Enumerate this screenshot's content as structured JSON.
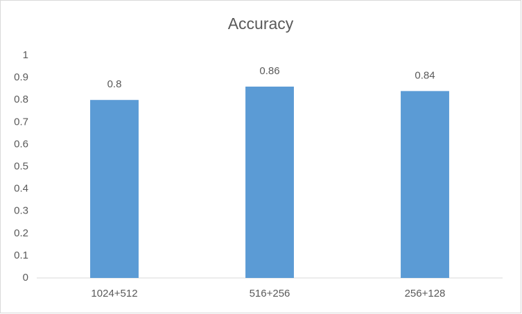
{
  "chart_data": {
    "type": "bar",
    "title": "Accuracy",
    "categories": [
      "1024+512",
      "516+256",
      "256+128"
    ],
    "values": [
      0.8,
      0.86,
      0.84
    ],
    "color": "#5b9bd5",
    "ylim": [
      0,
      1
    ],
    "yticks": [
      0,
      0.1,
      0.2,
      0.3,
      0.4,
      0.5,
      0.6,
      0.7,
      0.8,
      0.9,
      1
    ],
    "grid": false,
    "data_labels": true
  }
}
